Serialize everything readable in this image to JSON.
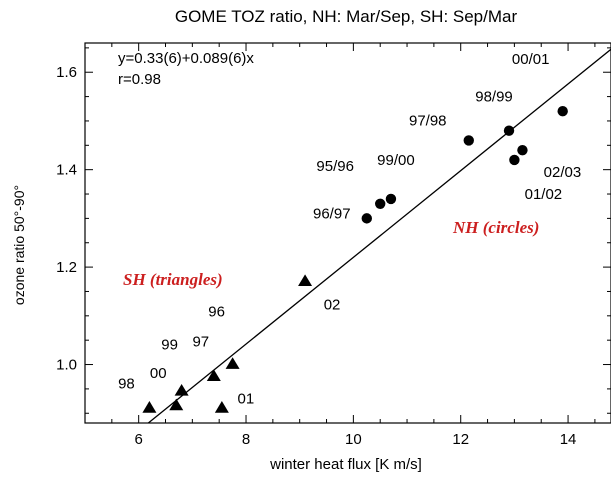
{
  "chart_data": {
    "type": "scatter",
    "title": "GOME TOZ ratio, NH: Mar/Sep, SH: Sep/Mar",
    "xlabel": "winter heat flux  [K m/s]",
    "ylabel": "ozone ratio 50°-90°",
    "xlim": [
      5.0,
      14.8
    ],
    "ylim": [
      0.88,
      1.66
    ],
    "xticks": [
      6,
      8,
      10,
      12,
      14
    ],
    "yticks": [
      1.0,
      1.2,
      1.4,
      1.6
    ],
    "grid": false,
    "fit": {
      "intercept": 0.33,
      "slope": 0.089,
      "equation": "y=0.33(6)+0.089(6)x",
      "r_text": "r=0.98"
    },
    "series": [
      {
        "name": "SH (triangles)",
        "marker": "triangle",
        "color": "#cc1f1f",
        "points": [
          {
            "label": "98",
            "x": 6.2,
            "y": 0.91
          },
          {
            "label": "00",
            "x": 6.7,
            "y": 0.915
          },
          {
            "label": "99",
            "x": 6.8,
            "y": 0.945
          },
          {
            "label": "97",
            "x": 7.4,
            "y": 0.975
          },
          {
            "label": "01",
            "x": 7.55,
            "y": 0.91
          },
          {
            "label": "96",
            "x": 7.75,
            "y": 1.0
          },
          {
            "label": "02",
            "x": 9.1,
            "y": 1.17
          }
        ]
      },
      {
        "name": "NH (circles)",
        "marker": "circle",
        "color": "#cc1f1f",
        "points": [
          {
            "label": "96/97",
            "x": 10.25,
            "y": 1.3
          },
          {
            "label": "95/96",
            "x": 10.5,
            "y": 1.33
          },
          {
            "label": "99/00",
            "x": 10.7,
            "y": 1.34
          },
          {
            "label": "97/98",
            "x": 12.15,
            "y": 1.46
          },
          {
            "label": "98/99",
            "x": 12.9,
            "y": 1.48
          },
          {
            "label": "01/02",
            "x": 13.0,
            "y": 1.42
          },
          {
            "label": "02/03",
            "x": 13.15,
            "y": 1.44
          },
          {
            "label": "00/01",
            "x": 13.9,
            "y": 1.52
          }
        ]
      }
    ]
  }
}
